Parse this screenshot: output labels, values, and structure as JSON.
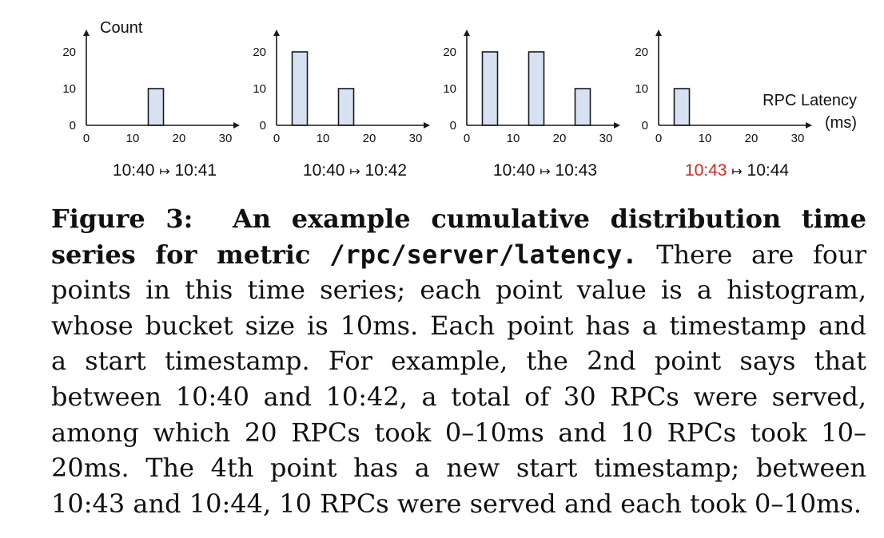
{
  "colors": {
    "bar_fill": "#d6e2f2",
    "bar_stroke": "#1a1a1a",
    "axis": "#1a1a1a",
    "highlight": "#e0261f",
    "text": "#111111"
  },
  "chart_data": [
    {
      "type": "bar",
      "ylabel": "Count",
      "xlabel": "",
      "x_ticks": [
        "0",
        "10",
        "20",
        "30"
      ],
      "y_ticks": [
        "0",
        "10",
        "20"
      ],
      "xlim": [
        0,
        30
      ],
      "ylim": [
        0,
        20
      ],
      "buckets": [
        {
          "x": 5,
          "value": 0
        },
        {
          "x": 15,
          "value": 10
        },
        {
          "x": 25,
          "value": 0
        }
      ],
      "interval_start": "10:40",
      "interval_end": "10:41",
      "start_highlighted": false
    },
    {
      "type": "bar",
      "ylabel": "",
      "xlabel": "",
      "x_ticks": [
        "0",
        "10",
        "20",
        "30"
      ],
      "y_ticks": [
        "0",
        "10",
        "20"
      ],
      "xlim": [
        0,
        30
      ],
      "ylim": [
        0,
        20
      ],
      "buckets": [
        {
          "x": 5,
          "value": 20
        },
        {
          "x": 15,
          "value": 10
        },
        {
          "x": 25,
          "value": 0
        }
      ],
      "interval_start": "10:40",
      "interval_end": "10:42",
      "start_highlighted": false
    },
    {
      "type": "bar",
      "ylabel": "",
      "xlabel": "",
      "x_ticks": [
        "0",
        "10",
        "20",
        "30"
      ],
      "y_ticks": [
        "0",
        "10",
        "20"
      ],
      "xlim": [
        0,
        30
      ],
      "ylim": [
        0,
        20
      ],
      "buckets": [
        {
          "x": 5,
          "value": 20
        },
        {
          "x": 15,
          "value": 20
        },
        {
          "x": 25,
          "value": 10
        }
      ],
      "interval_start": "10:40",
      "interval_end": "10:43",
      "start_highlighted": false
    },
    {
      "type": "bar",
      "ylabel": "",
      "xlabel": "RPC Latency\n(ms)",
      "xlabel_lines": [
        "RPC Latency",
        "(ms)"
      ],
      "x_ticks": [
        "0",
        "10",
        "20",
        "30"
      ],
      "y_ticks": [
        "0",
        "10",
        "20"
      ],
      "xlim": [
        0,
        30
      ],
      "ylim": [
        0,
        20
      ],
      "buckets": [
        {
          "x": 5,
          "value": 10
        },
        {
          "x": 15,
          "value": 0
        },
        {
          "x": 25,
          "value": 0
        }
      ],
      "interval_start": "10:43",
      "interval_end": "10:44",
      "start_highlighted": true
    }
  ],
  "interval_arrow": "↦",
  "caption": {
    "fig_num": "Figure 3:",
    "title_lines": [
      "An example cumulative distribution time",
      "series for metric"
    ],
    "metric": "/rpc/server/latency.",
    "line2_rest": "There are four",
    "lines": [
      "points in this time series; each point value is a histogram,",
      "whose bucket size is 10ms.  Each point has a timestamp and",
      "a start timestamp.  For example, the 2nd point says that",
      "between 10:40 and 10:42, a total of 30 RPCs were served,",
      "among which 20 RPCs took 0–10ms and 10 RPCs took 10–",
      "20ms.  The 4th point has a new start timestamp; between",
      "10:43 and 10:44, 10 RPCs were served and each took 0–10ms."
    ]
  }
}
